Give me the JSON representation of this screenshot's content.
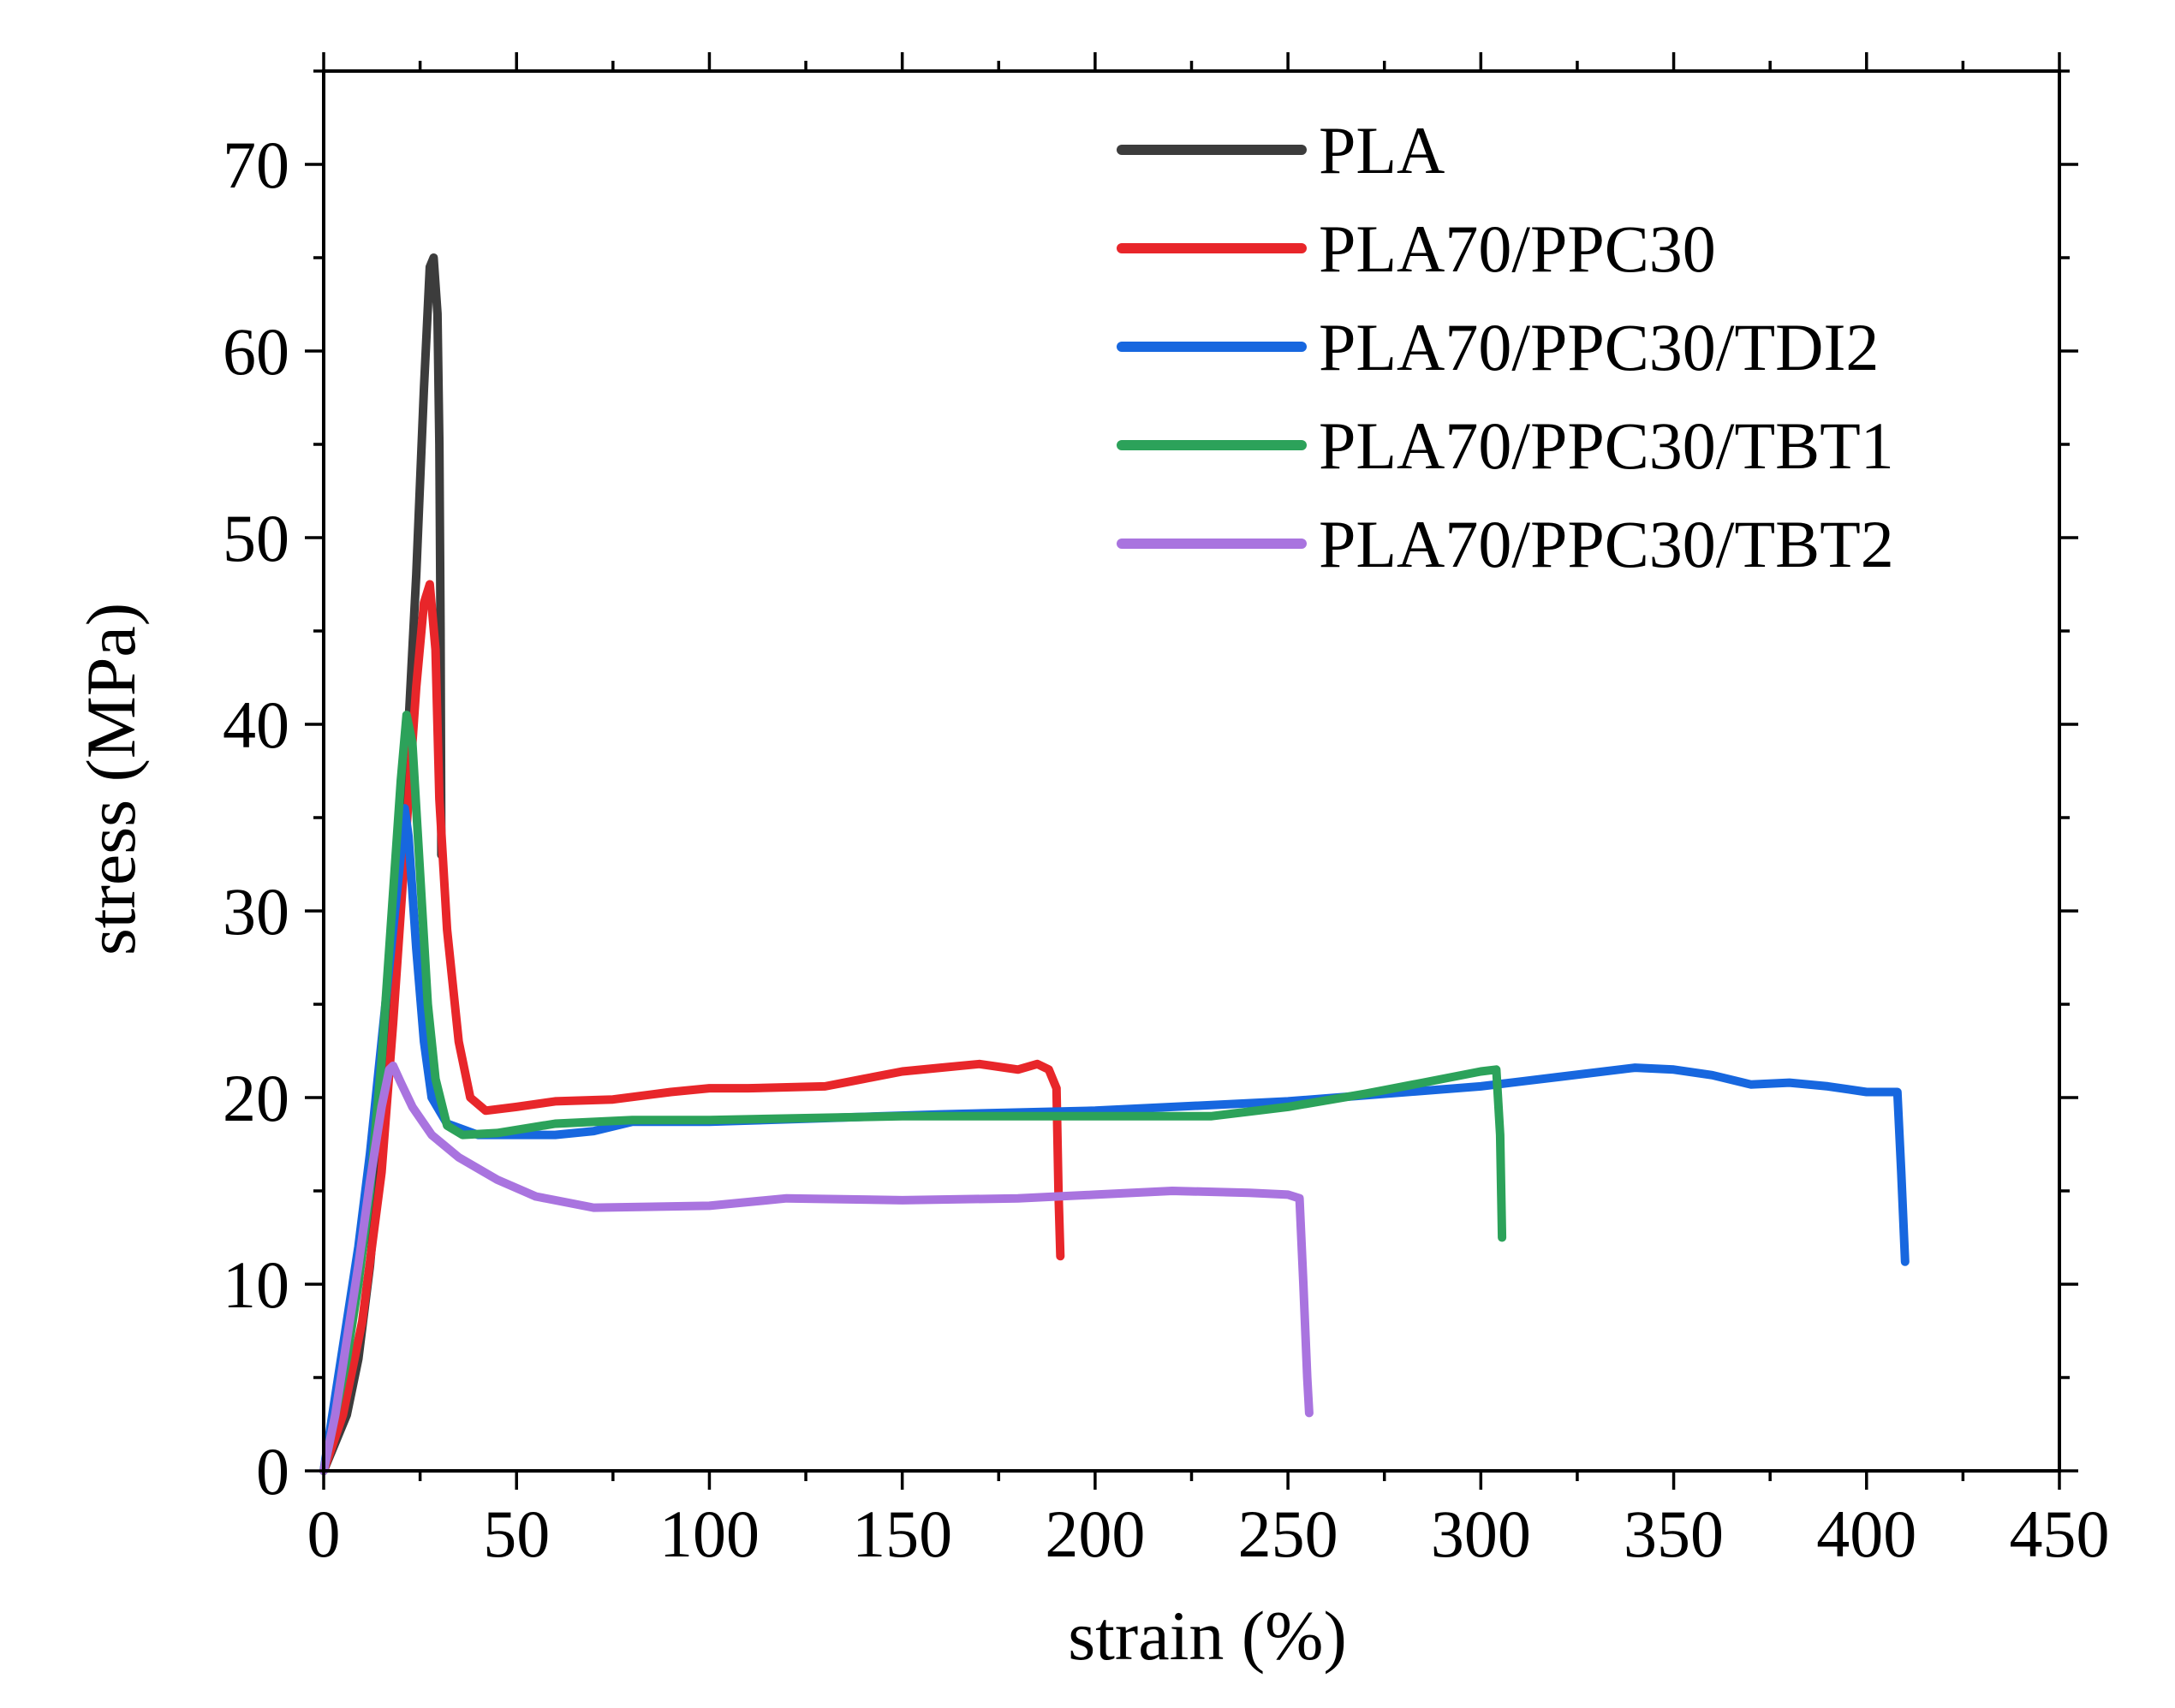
{
  "chart_data": {
    "type": "line",
    "title": "",
    "xlabel": "strain (%)",
    "ylabel": "stress (MPa)",
    "xlim": [
      0,
      450
    ],
    "ylim": [
      0,
      75
    ],
    "xticks": [
      0,
      50,
      100,
      150,
      200,
      250,
      300,
      350,
      400,
      450
    ],
    "xtick_labels": [
      "0",
      "50",
      "100",
      "150",
      "200",
      "250",
      "300",
      "350",
      "400",
      "450"
    ],
    "yticks": [
      0,
      10,
      20,
      30,
      40,
      50,
      60,
      70
    ],
    "ytick_labels": [
      "0",
      "10",
      "20",
      "30",
      "40",
      "50",
      "60",
      "70"
    ],
    "grid": false,
    "legend_position": "top-right",
    "series": [
      {
        "name": "PLA",
        "color": "#3c3c3c",
        "points": [
          [
            0,
            0
          ],
          [
            3,
            1.5
          ],
          [
            6,
            3
          ],
          [
            9,
            6
          ],
          [
            12,
            11
          ],
          [
            15,
            18
          ],
          [
            18,
            26
          ],
          [
            21,
            36
          ],
          [
            24,
            48
          ],
          [
            26,
            58
          ],
          [
            27.5,
            64.5
          ],
          [
            28.5,
            65
          ],
          [
            29.5,
            62
          ],
          [
            30,
            55
          ],
          [
            30.3,
            45
          ],
          [
            30.5,
            33
          ]
        ]
      },
      {
        "name": "PLA70/PPC30",
        "color": "#e8262a",
        "points": [
          [
            0,
            0
          ],
          [
            5,
            3
          ],
          [
            10,
            8
          ],
          [
            15,
            16
          ],
          [
            18,
            24
          ],
          [
            21,
            33
          ],
          [
            24,
            42
          ],
          [
            26,
            46.5
          ],
          [
            27.5,
            47.5
          ],
          [
            29,
            44
          ],
          [
            30,
            36
          ],
          [
            32,
            29
          ],
          [
            35,
            23
          ],
          [
            38,
            20
          ],
          [
            42,
            19.3
          ],
          [
            50,
            19.5
          ],
          [
            60,
            19.8
          ],
          [
            75,
            19.9
          ],
          [
            90,
            20.3
          ],
          [
            100,
            20.5
          ],
          [
            110,
            20.5
          ],
          [
            130,
            20.6
          ],
          [
            140,
            21
          ],
          [
            150,
            21.4
          ],
          [
            160,
            21.6
          ],
          [
            170,
            21.8
          ],
          [
            180,
            21.5
          ],
          [
            185,
            21.8
          ],
          [
            188,
            21.5
          ],
          [
            190,
            20.5
          ],
          [
            190.5,
            15
          ],
          [
            191,
            11.5
          ]
        ]
      },
      {
        "name": "PLA70/PPC30/TDI2",
        "color": "#1767df",
        "points": [
          [
            0,
            0
          ],
          [
            3,
            4
          ],
          [
            6,
            8
          ],
          [
            9,
            12
          ],
          [
            12,
            17
          ],
          [
            15,
            23
          ],
          [
            18,
            29
          ],
          [
            20,
            33
          ],
          [
            21,
            35.5
          ],
          [
            22,
            34
          ],
          [
            24,
            28
          ],
          [
            26,
            23
          ],
          [
            28,
            20
          ],
          [
            32,
            18.6
          ],
          [
            40,
            18
          ],
          [
            50,
            18
          ],
          [
            60,
            18
          ],
          [
            70,
            18.2
          ],
          [
            80,
            18.7
          ],
          [
            100,
            18.7
          ],
          [
            130,
            18.9
          ],
          [
            160,
            19.1
          ],
          [
            200,
            19.3
          ],
          [
            250,
            19.8
          ],
          [
            300,
            20.6
          ],
          [
            320,
            21.1
          ],
          [
            340,
            21.6
          ],
          [
            350,
            21.5
          ],
          [
            360,
            21.2
          ],
          [
            370,
            20.7
          ],
          [
            380,
            20.8
          ],
          [
            390,
            20.6
          ],
          [
            400,
            20.3
          ],
          [
            408,
            20.3
          ],
          [
            409,
            16
          ],
          [
            410,
            11.2
          ]
        ]
      },
      {
        "name": "PLA70/PPC30/TBT1",
        "color": "#2ca25a",
        "points": [
          [
            0,
            0
          ],
          [
            3,
            3
          ],
          [
            6,
            6
          ],
          [
            9,
            10
          ],
          [
            12,
            15
          ],
          [
            15,
            22
          ],
          [
            18,
            31
          ],
          [
            20,
            37
          ],
          [
            21.5,
            40.5
          ],
          [
            23,
            39
          ],
          [
            25,
            32
          ],
          [
            27,
            25
          ],
          [
            29,
            21
          ],
          [
            32,
            18.5
          ],
          [
            36,
            18
          ],
          [
            45,
            18.1
          ],
          [
            60,
            18.6
          ],
          [
            80,
            18.8
          ],
          [
            100,
            18.8
          ],
          [
            150,
            19
          ],
          [
            200,
            19
          ],
          [
            230,
            19
          ],
          [
            250,
            19.5
          ],
          [
            270,
            20.2
          ],
          [
            285,
            20.8
          ],
          [
            300,
            21.4
          ],
          [
            304,
            21.5
          ],
          [
            305,
            18
          ],
          [
            305.5,
            12.5
          ]
        ]
      },
      {
        "name": "PLA70/PPC30/TBT2",
        "color": "#a974df",
        "points": [
          [
            0,
            0
          ],
          [
            3,
            3
          ],
          [
            6,
            7
          ],
          [
            9,
            11
          ],
          [
            12,
            15.5
          ],
          [
            15,
            19.5
          ],
          [
            17,
            21.5
          ],
          [
            18,
            21.7
          ],
          [
            20,
            20.8
          ],
          [
            23,
            19.5
          ],
          [
            28,
            18
          ],
          [
            35,
            16.8
          ],
          [
            45,
            15.6
          ],
          [
            55,
            14.7
          ],
          [
            70,
            14.1
          ],
          [
            100,
            14.2
          ],
          [
            120,
            14.6
          ],
          [
            150,
            14.5
          ],
          [
            180,
            14.6
          ],
          [
            200,
            14.8
          ],
          [
            220,
            15
          ],
          [
            240,
            14.9
          ],
          [
            250,
            14.8
          ],
          [
            253,
            14.6
          ],
          [
            254,
            10
          ],
          [
            255,
            5
          ],
          [
            255.5,
            3.1
          ]
        ]
      }
    ]
  }
}
